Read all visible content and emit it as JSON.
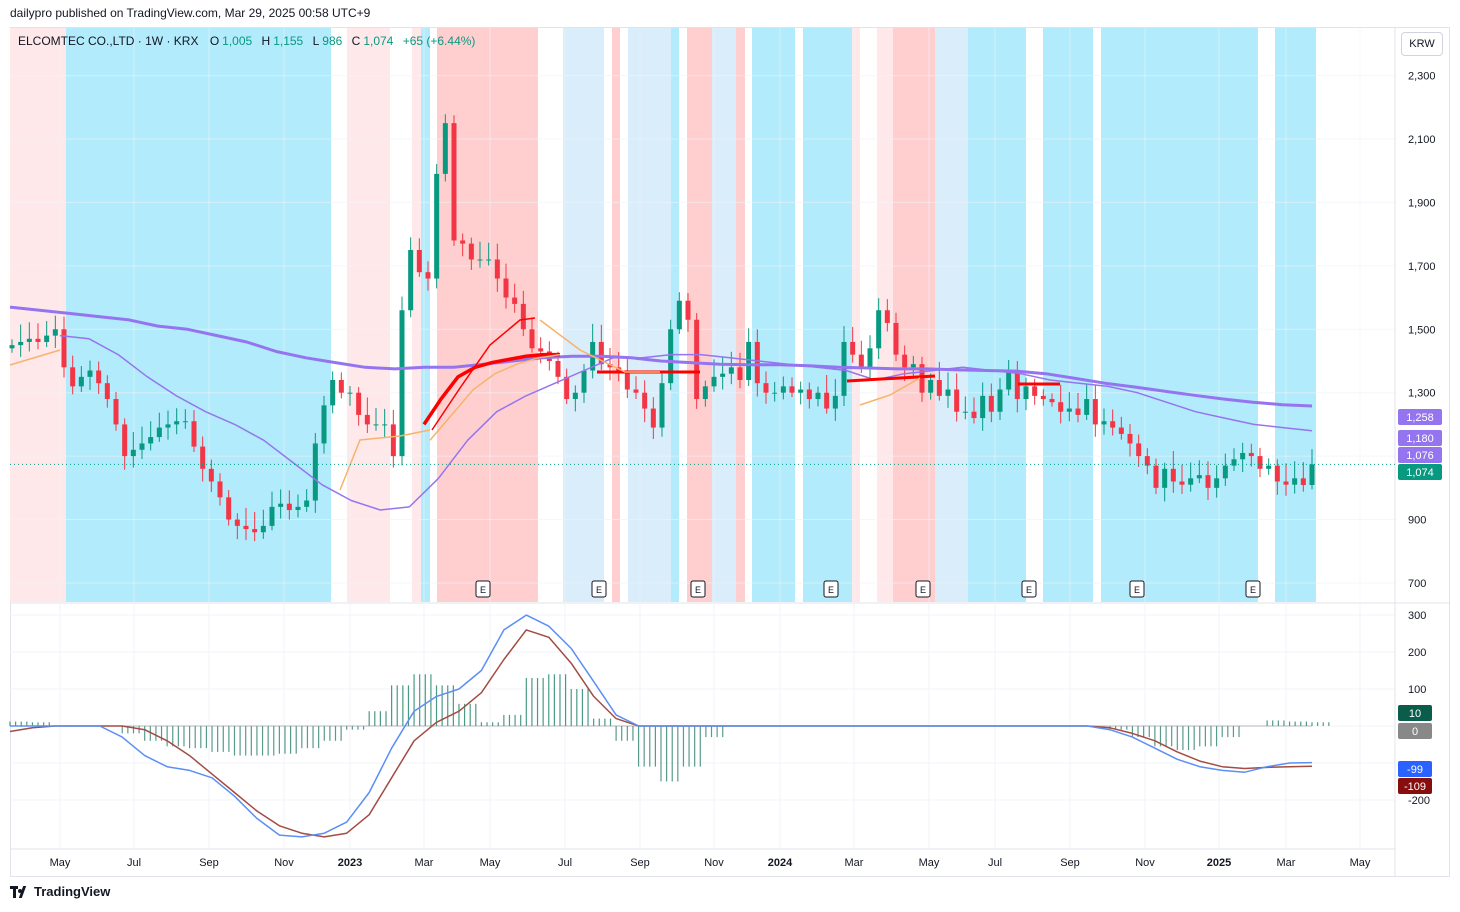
{
  "header": {
    "published": "dailypro published on TradingView.com, Mar 29, 2025 00:58 UTC+9"
  },
  "legend": {
    "symbol": "ELCOMTEC CO.,LTD · 1W · KRX",
    "o_label": "O",
    "o_value": "1,005",
    "h_label": "H",
    "h_value": "1,155",
    "l_label": "L",
    "l_value": "986",
    "c_label": "C",
    "c_value": "1,074",
    "change": "+65 (+6.44%)"
  },
  "currency": "KRW",
  "footer": {
    "brand": "TradingView"
  },
  "colors": {
    "up": "#089981",
    "down": "#f23645",
    "ma_purple": "#9475ef",
    "ma_red": "#ff0000",
    "ma_orange": "#f7b36b",
    "bg_cyan": "#b2ebfb",
    "bg_lightblue": "#d9edfb",
    "bg_pink": "#ffcfcf",
    "bg_lightpink": "#ffe8ea",
    "macd_blue": "#5b8ff5",
    "signal_brown": "#a24c43"
  },
  "chart_data": [
    {
      "type": "candlestick",
      "title": "ELCOMTEC CO.,LTD · 1W · KRX",
      "timeframe": "1W",
      "ylim": [
        640,
        2450
      ],
      "y_ticks": [
        "700",
        "900",
        "1,100",
        "1,300",
        "1,500",
        "1,700",
        "1,900",
        "2,100",
        "2,300"
      ],
      "x_ticks": [
        "May",
        "Jul",
        "Sep",
        "Nov",
        "2023",
        "Mar",
        "May",
        "Jul",
        "Sep",
        "Nov",
        "2024",
        "Mar",
        "May",
        "Jul",
        "Sep",
        "Nov",
        "2025",
        "Mar",
        "May"
      ],
      "close": [
        1450,
        1460,
        1470,
        1460,
        1480,
        1500,
        1380,
        1320,
        1350,
        1370,
        1330,
        1280,
        1200,
        1100,
        1120,
        1140,
        1160,
        1190,
        1200,
        1210,
        1210,
        1130,
        1060,
        1020,
        970,
        900,
        880,
        870,
        860,
        880,
        940,
        950,
        930,
        940,
        960,
        1140,
        1260,
        1340,
        1300,
        1300,
        1230,
        1200,
        1200,
        1200,
        1100,
        1560,
        1750,
        1680,
        1660,
        1990,
        2150,
        1780,
        1770,
        1720,
        1720,
        1720,
        1660,
        1600,
        1580,
        1500,
        1440,
        1430,
        1400,
        1350,
        1280,
        1300,
        1370,
        1460,
        1390,
        1380,
        1370,
        1310,
        1300,
        1250,
        1190,
        1330,
        1500,
        1590,
        1530,
        1280,
        1320,
        1350,
        1360,
        1380,
        1340,
        1460,
        1330,
        1300,
        1300,
        1320,
        1300,
        1310,
        1280,
        1300,
        1250,
        1290,
        1460,
        1420,
        1380,
        1440,
        1560,
        1520,
        1420,
        1380,
        1390,
        1300,
        1340,
        1290,
        1310,
        1240,
        1240,
        1220,
        1290,
        1240,
        1310,
        1370,
        1280,
        1320,
        1290,
        1280,
        1270,
        1240,
        1250,
        1230,
        1280,
        1200,
        1210,
        1190,
        1170,
        1140,
        1100,
        1070,
        1000,
        1060,
        1020,
        1010,
        1030,
        1040,
        1000,
        1030,
        1070,
        1090,
        1110,
        1100,
        1060,
        1070,
        1020,
        1010,
        1030,
        1009,
        1074
      ],
      "series": [
        {
          "name": "",
          "color": "#9475ef",
          "values": [
            1570,
            1560,
            1550,
            1540,
            1530,
            1510,
            1500,
            1480,
            1460,
            1430,
            1410,
            1395,
            1380,
            1375,
            1380,
            1380,
            1390,
            1400,
            1410,
            1415,
            1415,
            1410,
            1400,
            1395,
            1390,
            1388,
            1388,
            1385,
            1380,
            1378,
            1375,
            1375,
            1372,
            1370,
            1368,
            1360,
            1345,
            1330,
            1318,
            1305,
            1292,
            1280,
            1270,
            1262,
            1258
          ]
        },
        {
          "name": "",
          "color": "#9475ef",
          "values": [
            1480,
            1470,
            1420,
            1350,
            1290,
            1240,
            1200,
            1150,
            1080,
            1010,
            960,
            930,
            940,
            1030,
            1150,
            1240,
            1290,
            1330,
            1370,
            1410,
            1410,
            1420,
            1420,
            1410,
            1400,
            1390,
            1380,
            1370,
            1340,
            1360,
            1370,
            1380,
            1370,
            1360,
            1340,
            1330,
            1320,
            1300,
            1270,
            1240,
            1220,
            1200,
            1190,
            1180
          ]
        }
      ]
    },
    {
      "type": "line",
      "title": "",
      "ylim": [
        -330,
        330
      ],
      "y_ticks": [
        "-200",
        "100",
        "200",
        "300"
      ],
      "series": [
        {
          "name": "",
          "color": "#5b8ff5",
          "values": [
            0,
            0,
            0,
            0,
            0,
            -30,
            -80,
            -110,
            -120,
            -140,
            -190,
            -250,
            -295,
            -300,
            -290,
            -260,
            -180,
            -60,
            40,
            80,
            100,
            150,
            260,
            300,
            270,
            210,
            120,
            30,
            0,
            0,
            0,
            0,
            0,
            0,
            0,
            0,
            0,
            0,
            0,
            0,
            0,
            0,
            0,
            0,
            0,
            0,
            0,
            0,
            0,
            -10,
            -30,
            -60,
            -90,
            -110,
            -120,
            -125,
            -110,
            -100,
            -99
          ]
        },
        {
          "name": "",
          "color": "#a24c43",
          "values": [
            -15,
            -5,
            0,
            0,
            0,
            0,
            -10,
            -40,
            -80,
            -130,
            -180,
            -230,
            -270,
            -290,
            -300,
            -290,
            -240,
            -140,
            -40,
            10,
            40,
            90,
            180,
            260,
            240,
            170,
            80,
            20,
            0,
            0,
            0,
            0,
            0,
            0,
            0,
            0,
            0,
            0,
            0,
            0,
            0,
            0,
            0,
            0,
            0,
            0,
            0,
            0,
            0,
            -5,
            -20,
            -40,
            -70,
            -95,
            -110,
            -115,
            -112,
            -110,
            -109
          ]
        }
      ],
      "histogram": [
        12,
        10,
        2,
        0,
        0,
        -20,
        -40,
        -55,
        -60,
        -70,
        -80,
        -80,
        -75,
        -60,
        -40,
        -10,
        40,
        110,
        140,
        110,
        60,
        10,
        30,
        130,
        140,
        100,
        20,
        -40,
        -110,
        -150,
        -110,
        -30,
        0,
        0,
        0,
        0,
        0,
        0,
        0,
        0,
        0,
        0,
        0,
        0,
        0,
        0,
        0,
        0,
        0,
        -10,
        -30,
        -55,
        -65,
        -55,
        -30,
        0,
        15,
        12,
        10
      ]
    }
  ],
  "price_tags": [
    {
      "text": "1,258",
      "bg": "#9475ef"
    },
    {
      "text": "1,180",
      "bg": "#9475ef"
    },
    {
      "text": "1,076",
      "bg": "#9475ef"
    },
    {
      "text": "1,074",
      "bg": "#089981"
    }
  ],
  "indicator_tags": [
    {
      "text": "10",
      "bg": "#0a5d4b"
    },
    {
      "text": "0",
      "bg": "#888888"
    },
    {
      "text": "-99",
      "bg": "#2962ff"
    },
    {
      "text": "-109",
      "bg": "#880e0e"
    }
  ],
  "earnings_marker": "E"
}
